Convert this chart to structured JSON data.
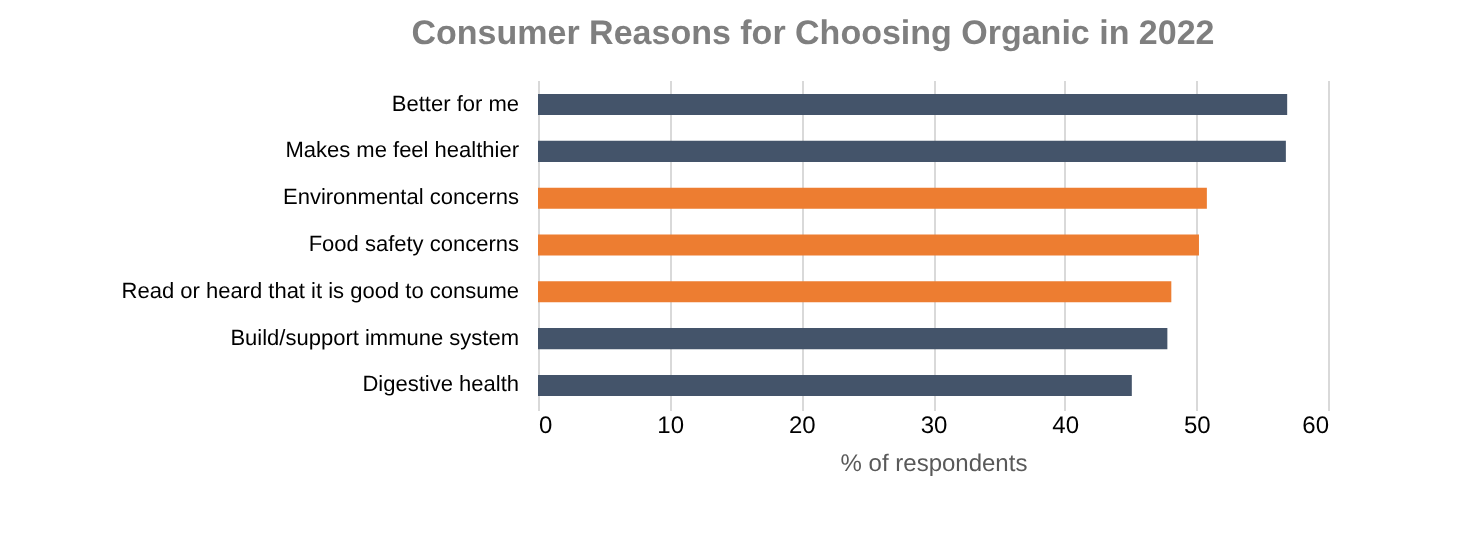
{
  "chart_data": {
    "type": "bar",
    "orientation": "horizontal",
    "title": "Consumer Reasons for Choosing Organic in 2022",
    "xlabel": "% of respondents",
    "categories": [
      "Better for me",
      "Makes me feel healthier",
      "Environmental concerns",
      "Food safety concerns",
      "Read or heard that it is good to consume",
      "Build/support immune system",
      "Digestive health"
    ],
    "values": [
      56.9,
      56.8,
      50.8,
      50.2,
      48.1,
      47.8,
      45.1
    ],
    "colors": [
      "#44546a",
      "#44546a",
      "#ed7d31",
      "#ed7d31",
      "#ed7d31",
      "#44546a",
      "#44546a"
    ],
    "xlim": [
      0,
      60
    ],
    "xticks": [
      0,
      10,
      20,
      30,
      40,
      50,
      60
    ],
    "grid": "x"
  }
}
